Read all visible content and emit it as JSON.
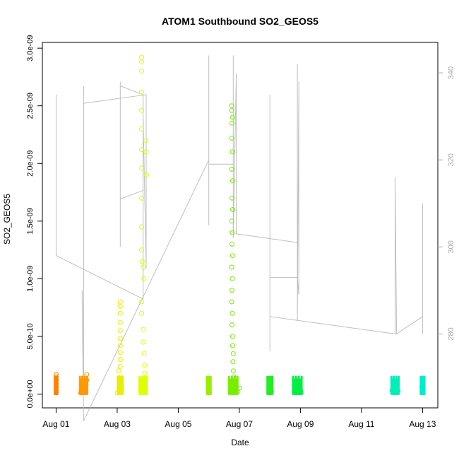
{
  "chart_data": {
    "type": "scatter",
    "title": "ATOM1 Southbound SO2_GEOS5",
    "xlabel": "Date",
    "ylabel": "SO2_GEOS5",
    "x_tick_labels": [
      "Aug 01",
      "Aug 03",
      "Aug 05",
      "Aug 07",
      "Aug 09",
      "Aug 11",
      "Aug 13"
    ],
    "x_tick_days": [
      1,
      3,
      5,
      7,
      9,
      11,
      13
    ],
    "xlim_days": [
      0.55,
      13.5
    ],
    "y_tick_labels": [
      "0.0e+00",
      "5.0e-10",
      "1.0e-09",
      "1.5e-09",
      "2.0e-09",
      "2.5e-09",
      "3.0e-09"
    ],
    "y_ticks": [
      0,
      5e-10,
      1e-09,
      1.5e-09,
      2e-09,
      2.5e-09,
      3e-09
    ],
    "ylim": [
      -1.2e-10,
      3.05e-09
    ],
    "y2_tick_labels": [
      "280",
      "300",
      "320",
      "340"
    ],
    "y2_ticks": [
      280,
      300,
      320,
      340
    ],
    "y2lim": [
      263,
      347
    ],
    "grid": false,
    "colors": {
      "day1": "#ff8000",
      "day2": "#ff9900",
      "day3": "#e6f000",
      "day4": "#ddff00",
      "day6": "#99ee00",
      "day7": "#77ee00",
      "day8": "#22ee22",
      "day9": "#00ee44",
      "day12": "#00eebb",
      "day13": "#00eecc",
      "secondary_line": "#bfbfbf",
      "axis": "#000000"
    },
    "series": [
      {
        "day": 1.0,
        "color_key": "day1",
        "x_spread": 0.04,
        "points": [
          [
            1.0,
            1.7e-10
          ],
          [
            1.0,
            1.5e-10
          ],
          [
            1.0,
            1.2e-10
          ],
          [
            1.0,
            9e-11
          ],
          [
            1.0,
            6e-11
          ],
          [
            1.0,
            3e-11
          ],
          [
            1.0,
            1e-11
          ]
        ]
      },
      {
        "day": 1.9,
        "color_key": "day2",
        "x_spread": 0.12,
        "points": [
          [
            1.8,
            1e-11
          ],
          [
            1.85,
            2e-11
          ],
          [
            1.9,
            4e-11
          ],
          [
            1.95,
            6e-11
          ],
          [
            2.0,
            1.7e-10
          ],
          [
            2.0,
            1.2e-10
          ],
          [
            1.98,
            8e-11
          ]
        ]
      },
      {
        "day": 3.1,
        "color_key": "day3",
        "x_spread": 0.08,
        "points": [
          [
            3.0,
            1e-11
          ],
          [
            3.05,
            2e-10
          ],
          [
            3.1,
            8e-10
          ],
          [
            3.1,
            7.6e-10
          ],
          [
            3.1,
            7e-10
          ],
          [
            3.1,
            6.2e-10
          ],
          [
            3.1,
            5.5e-10
          ],
          [
            3.1,
            4.8e-10
          ],
          [
            3.1,
            4.2e-10
          ],
          [
            3.1,
            3.6e-10
          ],
          [
            3.1,
            3e-10
          ],
          [
            3.1,
            2.4e-10
          ],
          [
            3.1,
            1.5e-10
          ],
          [
            3.1,
            6e-11
          ],
          [
            3.15,
            3e-11
          ]
        ]
      },
      {
        "day": 3.85,
        "color_key": "day4",
        "x_spread": 0.12,
        "points": [
          [
            3.8,
            2.92e-09
          ],
          [
            3.8,
            2.88e-09
          ],
          [
            3.8,
            2.8e-09
          ],
          [
            3.8,
            2.62e-09
          ],
          [
            3.8,
            2.46e-09
          ],
          [
            3.8,
            2.3e-09
          ],
          [
            3.8,
            2.12e-09
          ],
          [
            3.8,
            1.96e-09
          ],
          [
            3.8,
            1.7e-09
          ],
          [
            3.8,
            1.45e-09
          ],
          [
            3.8,
            1.25e-09
          ],
          [
            3.82,
            1.15e-09
          ],
          [
            3.85,
            1.1e-09
          ],
          [
            3.88,
            1e-09
          ],
          [
            3.8,
            8e-10
          ],
          [
            3.8,
            7e-10
          ],
          [
            3.85,
            5.6e-10
          ],
          [
            3.85,
            4.5e-10
          ],
          [
            3.88,
            3.5e-10
          ],
          [
            3.9,
            2.5e-10
          ],
          [
            3.9,
            1.8e-10
          ],
          [
            3.92,
            1.2e-10
          ],
          [
            3.85,
            6e-11
          ],
          [
            3.9,
            2e-11
          ],
          [
            3.95,
            2.1e-09
          ],
          [
            3.96,
            1.9e-09
          ],
          [
            3.94,
            2.2e-09
          ]
        ]
      },
      {
        "day": 6.0,
        "color_key": "day6",
        "x_spread": 0.06,
        "points": [
          [
            6.0,
            5e-11
          ],
          [
            6.0,
            3e-11
          ],
          [
            6.02,
            1e-11
          ],
          [
            5.98,
            2e-11
          ]
        ]
      },
      {
        "day": 6.8,
        "color_key": "day7",
        "x_spread": 0.14,
        "points": [
          [
            6.75,
            2.5e-09
          ],
          [
            6.75,
            2.46e-09
          ],
          [
            6.78,
            2.4e-09
          ],
          [
            6.76,
            2.35e-09
          ],
          [
            6.75,
            2.22e-09
          ],
          [
            6.77,
            2.1e-09
          ],
          [
            6.75,
            1.95e-09
          ],
          [
            6.78,
            1.85e-09
          ],
          [
            6.76,
            1.7e-09
          ],
          [
            6.78,
            1.6e-09
          ],
          [
            6.75,
            1.5e-09
          ],
          [
            6.77,
            1.4e-09
          ],
          [
            6.76,
            1.3e-09
          ],
          [
            6.78,
            1.2e-09
          ],
          [
            6.75,
            1.1e-09
          ],
          [
            6.77,
            1e-09
          ],
          [
            6.76,
            9e-10
          ],
          [
            6.75,
            8e-10
          ],
          [
            6.77,
            7e-10
          ],
          [
            6.76,
            6e-10
          ],
          [
            6.78,
            5e-10
          ],
          [
            6.78,
            4.2e-10
          ],
          [
            6.8,
            3.5e-10
          ],
          [
            6.79,
            2.8e-10
          ],
          [
            6.8,
            2e-10
          ],
          [
            6.82,
            1.5e-10
          ],
          [
            6.8,
            1e-10
          ],
          [
            6.84,
            6e-11
          ],
          [
            6.88,
            3e-11
          ],
          [
            6.95,
            2e-11
          ],
          [
            7.0,
            5e-11
          ],
          [
            6.7,
            2e-11
          ]
        ]
      },
      {
        "day": 8.0,
        "color_key": "day8",
        "x_spread": 0.08,
        "points": [
          [
            8.0,
            6e-11
          ],
          [
            8.0,
            4e-11
          ],
          [
            8.05,
            2e-11
          ],
          [
            7.97,
            1e-11
          ]
        ]
      },
      {
        "day": 8.9,
        "color_key": "day9",
        "x_spread": 0.14,
        "points": [
          [
            8.8,
            6e-11
          ],
          [
            8.85,
            3e-11
          ],
          [
            8.9,
            4e-11
          ],
          [
            8.95,
            2e-11
          ],
          [
            9.0,
            3e-11
          ],
          [
            9.02,
            1e-11
          ]
        ]
      },
      {
        "day": 12.1,
        "color_key": "day12",
        "x_spread": 0.12,
        "points": [
          [
            12.0,
            3e-11
          ],
          [
            12.05,
            2e-11
          ],
          [
            12.1,
            5e-11
          ],
          [
            12.15,
            7e-11
          ],
          [
            12.2,
            3e-11
          ]
        ]
      },
      {
        "day": 13.0,
        "color_key": "day13",
        "x_spread": 0.06,
        "points": [
          [
            12.98,
            6e-11
          ],
          [
            13.0,
            3e-11
          ],
          [
            13.02,
            5e-11
          ],
          [
            13.0,
            1e-11
          ]
        ]
      }
    ],
    "secondary_line": {
      "description_axis": "right",
      "points": [
        [
          1.0,
          333
        ],
        [
          1.0,
          325
        ],
        [
          1.0,
          335
        ],
        [
          1.0,
          298
        ],
        [
          3.85,
          288
        ],
        [
          3.85,
          313
        ],
        [
          3.1,
          311
        ],
        [
          3.1,
          328
        ],
        [
          3.1,
          338
        ],
        [
          3.1,
          300
        ],
        [
          3.1,
          337
        ],
        [
          3.85,
          335
        ],
        [
          3.85,
          290
        ],
        [
          3.85,
          330
        ],
        [
          3.95,
          295
        ],
        [
          3.95,
          328
        ],
        [
          3.95,
          305
        ],
        [
          3.95,
          335
        ],
        [
          1.9,
          333
        ],
        [
          1.9,
          325
        ],
        [
          1.9,
          310
        ],
        [
          1.9,
          337
        ],
        [
          1.9,
          300
        ],
        [
          1.9,
          270
        ],
        [
          1.85,
          290
        ],
        [
          1.9,
          260
        ],
        [
          6.0,
          320
        ],
        [
          6.0,
          305
        ],
        [
          6.0,
          344
        ],
        [
          6.0,
          319
        ],
        [
          6.8,
          319
        ],
        [
          6.8,
          344
        ],
        [
          6.8,
          302
        ],
        [
          6.9,
          340
        ],
        [
          6.9,
          303
        ],
        [
          8.9,
          301
        ],
        [
          8.9,
          342
        ],
        [
          8.9,
          283
        ],
        [
          8.95,
          338
        ],
        [
          8.95,
          289
        ],
        [
          8.9,
          293
        ],
        [
          8.0,
          293
        ],
        [
          8.0,
          335
        ],
        [
          8.0,
          276
        ],
        [
          8.0,
          284
        ],
        [
          12.1,
          280
        ],
        [
          12.1,
          283
        ],
        [
          12.1,
          316
        ],
        [
          12.15,
          280
        ],
        [
          13.0,
          284
        ],
        [
          13.0,
          310
        ],
        [
          13.0,
          280
        ]
      ]
    }
  }
}
